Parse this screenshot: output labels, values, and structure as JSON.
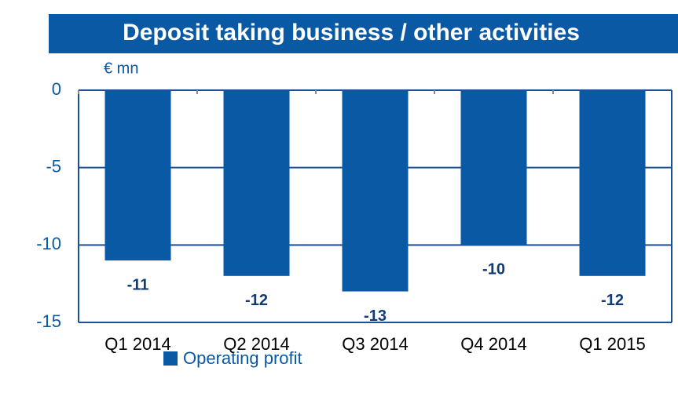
{
  "chart_data": {
    "type": "bar",
    "title": "Deposit taking business / other activities",
    "y_axis_label": "€ mn",
    "categories": [
      "Q1 2014",
      "Q2 2014",
      "Q3 2014",
      "Q4 2014",
      "Q1 2015"
    ],
    "series": [
      {
        "name": "Operating profit",
        "color": "#0a59a4",
        "values": [
          -11,
          -12,
          -13,
          -10,
          -12
        ]
      }
    ],
    "ylim": [
      -15,
      0
    ],
    "yticks": [
      0,
      -5,
      -10,
      -15
    ],
    "grid": true
  }
}
